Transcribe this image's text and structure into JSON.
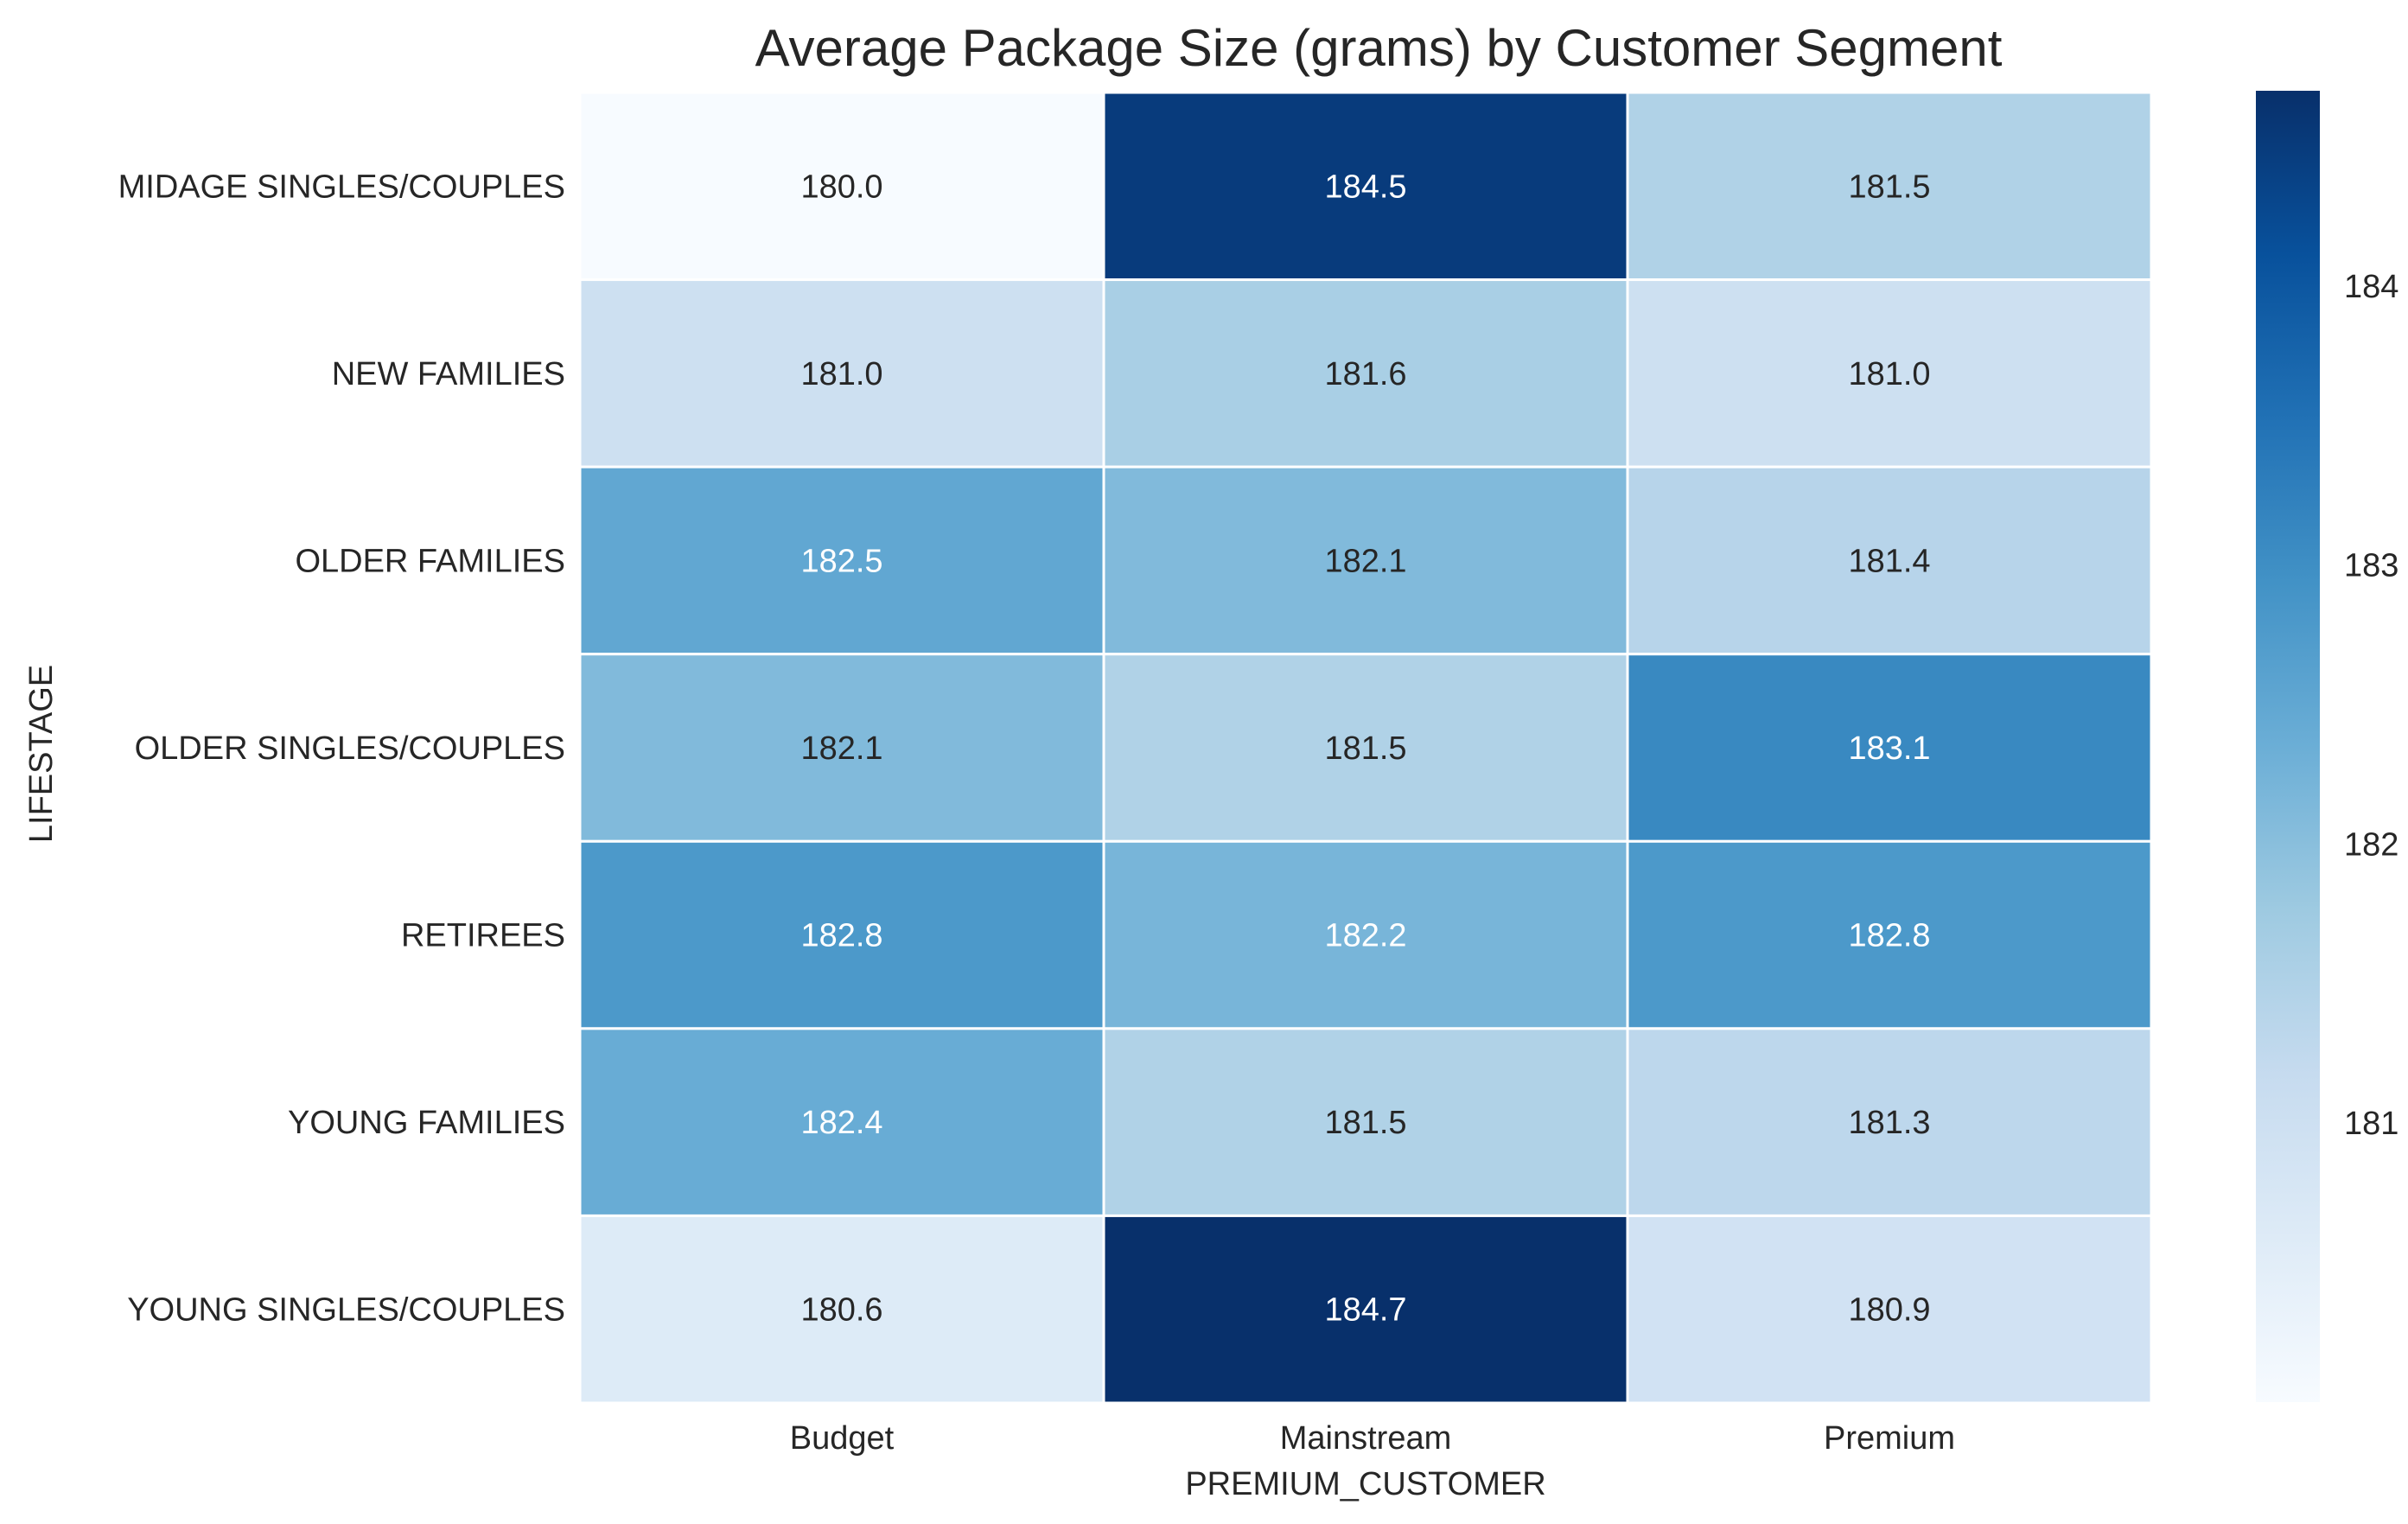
{
  "chart_data": {
    "type": "heatmap",
    "title": "Average Package Size (grams) by Customer Segment",
    "xlabel": "PREMIUM_CUSTOMER",
    "ylabel": "LIFESTAGE",
    "columns": [
      "Budget",
      "Mainstream",
      "Premium"
    ],
    "rows": [
      "MIDAGE SINGLES/COUPLES",
      "NEW FAMILIES",
      "OLDER FAMILIES",
      "OLDER SINGLES/COUPLES",
      "RETIREES",
      "YOUNG FAMILIES",
      "YOUNG SINGLES/COUPLES"
    ],
    "values": [
      [
        180.0,
        184.5,
        181.5
      ],
      [
        181.0,
        181.6,
        181.0
      ],
      [
        182.5,
        182.1,
        181.4
      ],
      [
        182.1,
        181.5,
        183.1
      ],
      [
        182.8,
        182.2,
        182.8
      ],
      [
        182.4,
        181.5,
        181.3
      ],
      [
        180.6,
        184.7,
        180.9
      ]
    ],
    "value_format": "0.0",
    "colormap": "Blues",
    "colorbar": {
      "range": [
        180.0,
        184.7
      ],
      "ticks": [
        181,
        182,
        183,
        184
      ]
    },
    "grid_line_color": "#ffffff"
  }
}
